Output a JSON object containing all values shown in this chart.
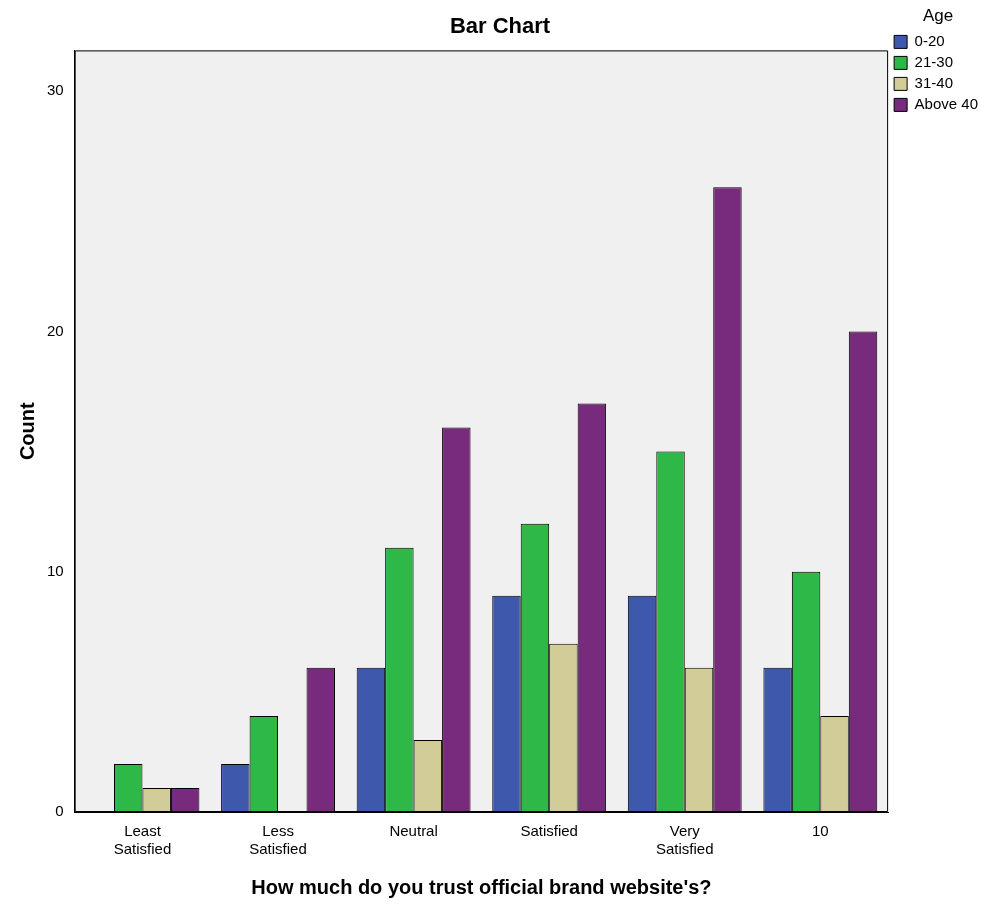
{
  "chart_data": {
    "type": "bar",
    "title": "Bar Chart",
    "xlabel": "How much do you trust official brand website's?",
    "ylabel": "Count",
    "legend_title": "Age",
    "legend": "top right",
    "grid": false,
    "categories": [
      "Least Satisfied",
      "Less Satisfied",
      "Neutral",
      "Satisfied",
      "Very Satisfied",
      "10"
    ],
    "ylim": [
      0,
      31.7
    ],
    "yticks": [
      0,
      10,
      20,
      30
    ],
    "series": [
      {
        "name": "0-20",
        "color": "#3e58ac",
        "values": [
          0,
          2,
          6,
          9,
          9,
          6
        ]
      },
      {
        "name": "21-30",
        "color": "#2eb848",
        "values": [
          2,
          4,
          11,
          12,
          15,
          10
        ]
      },
      {
        "name": "31-40",
        "color": "#d2cc99",
        "values": [
          1,
          0,
          3,
          7,
          6,
          4
        ]
      },
      {
        "name": "Above 40",
        "color": "#782a7c",
        "values": [
          1,
          6,
          16,
          17,
          26,
          20
        ]
      }
    ]
  }
}
